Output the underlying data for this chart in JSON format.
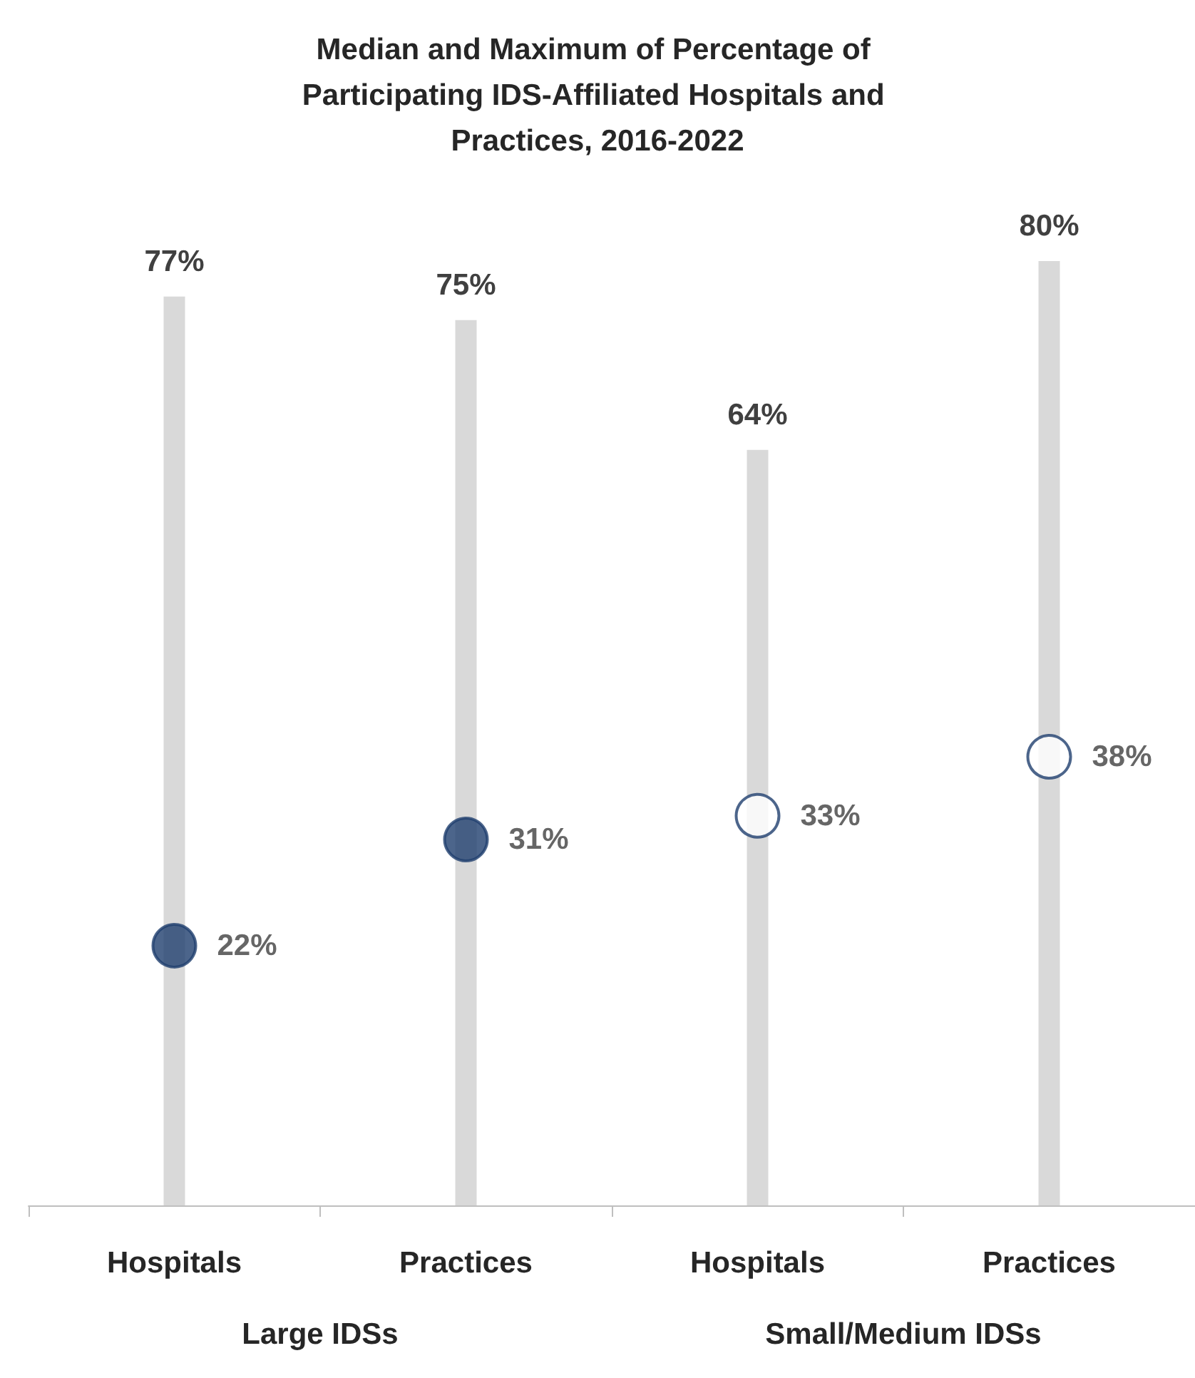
{
  "chart_data": {
    "type": "bar",
    "title": "Median and Maximum of Percentage of Participating IDS-Affiliated Hospitals and Practices, 2016-2022",
    "categories": [
      "Hospitals",
      "Practices",
      "Hospitals",
      "Practices"
    ],
    "series": [
      {
        "color": "#d9d9d9",
        "values": [
          77,
          75,
          64,
          80
        ],
        "value_labels": [
          "77%",
          "75%",
          "64%",
          "80%"
        ]
      },
      {
        "type": "scatter",
        "marker": "circle",
        "colors": [
          "#1f3f6e",
          "#1f3f6e",
          "#ffffff",
          "#ffffff"
        ],
        "values": [
          22,
          31,
          33,
          38
        ],
        "value_labels": [
          "22%",
          "31%",
          "33%",
          "38%"
        ]
      }
    ],
    "annotations": [
      "Large IDSs",
      "Small/Medium IDSs"
    ]
  }
}
